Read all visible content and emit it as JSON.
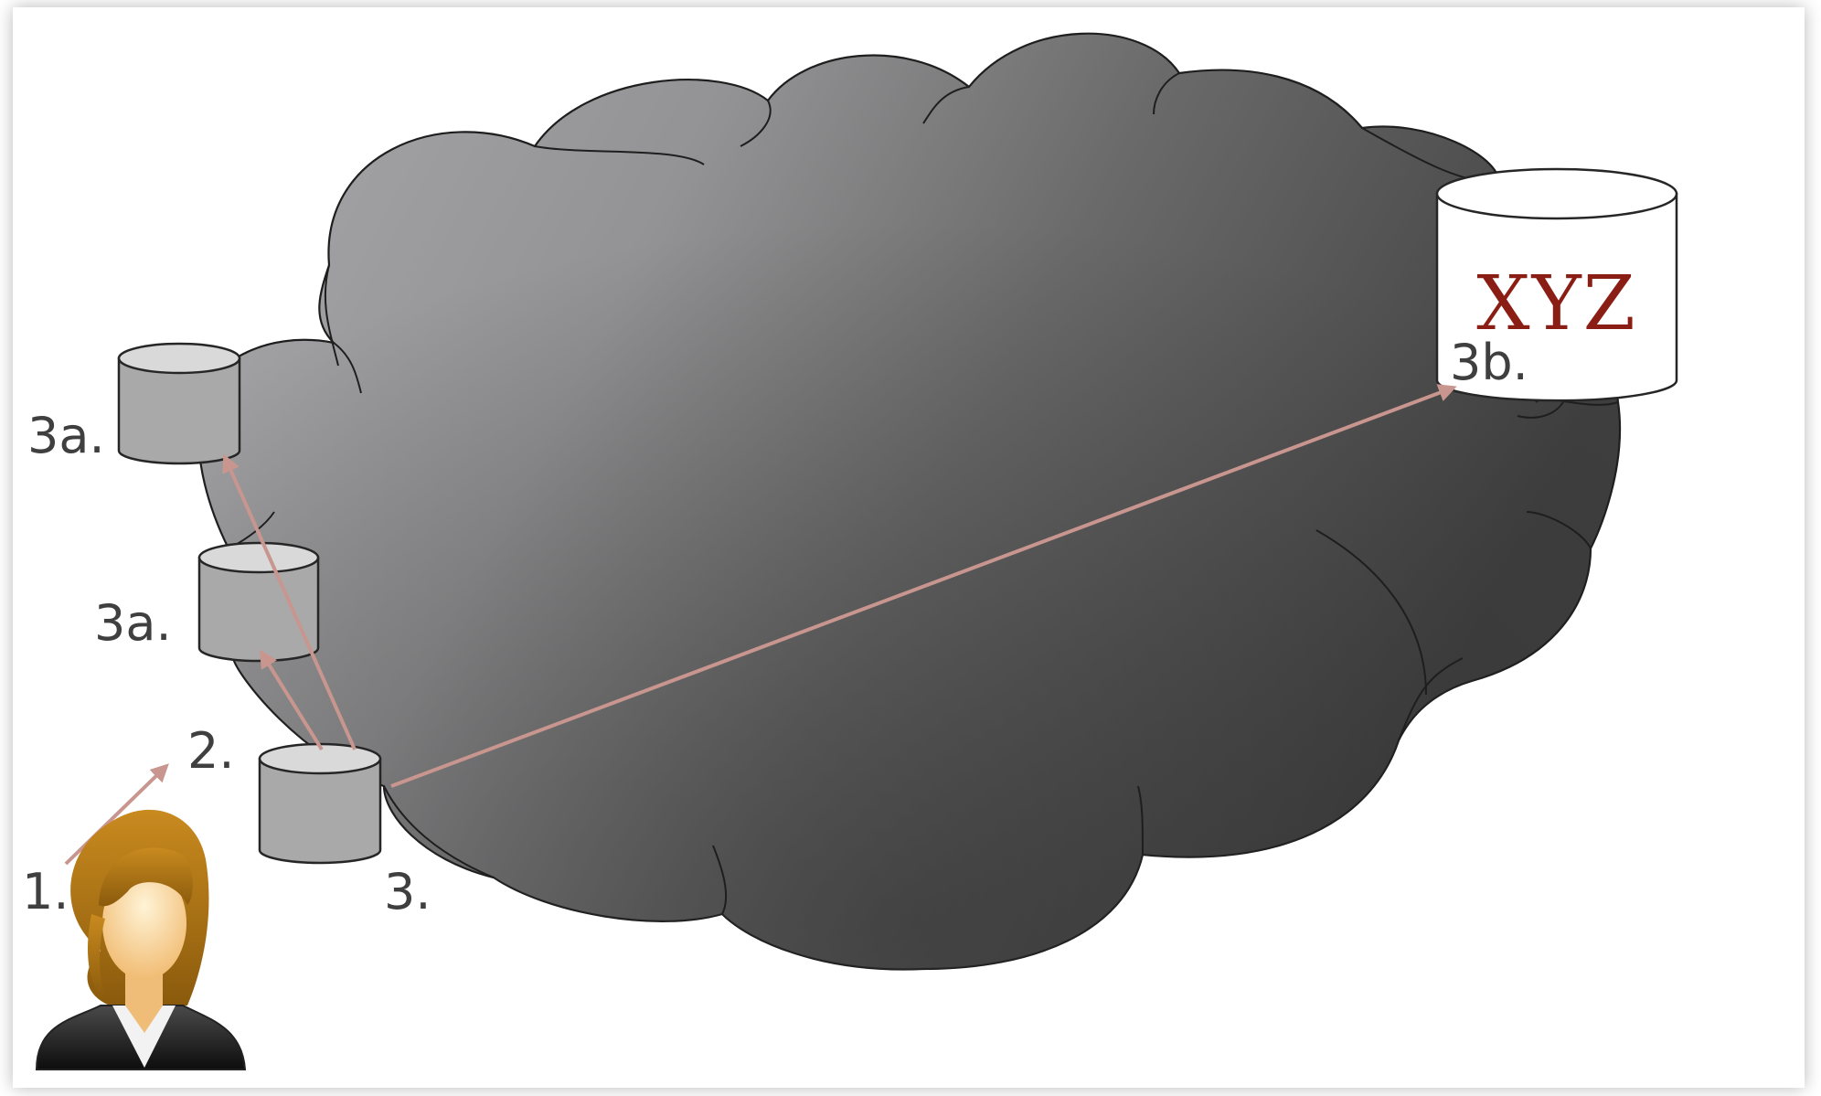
{
  "labels": {
    "step_1": "1.",
    "step_2": "2.",
    "step_3": "3.",
    "step_3a_upper": "3a.",
    "step_3a_lower": "3a.",
    "step_3b": "3b."
  },
  "target_db_name": "XYZ",
  "colors": {
    "arrow": "#c9968f",
    "cloud_light": "#a3a3a5",
    "cloud_dark": "#3c3c3c",
    "db_gray": "#a9a9a9",
    "db_target": "#ffffff",
    "xyz_text": "#8b1e14",
    "label_text": "#3f3f3f"
  },
  "icons": {
    "user": "user-avatar-icon",
    "database": "database-cylinder-icon",
    "network": "cloud-icon"
  }
}
